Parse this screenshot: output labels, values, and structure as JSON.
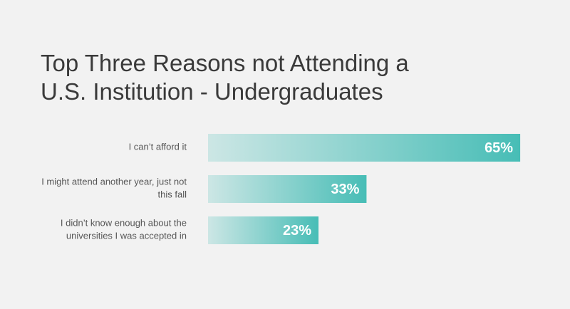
{
  "chart_data": {
    "type": "bar",
    "orientation": "horizontal",
    "title": "Top Three Reasons not Attending a U.S. Institution - Undergraduates",
    "categories": [
      "I can’t afford it",
      "I might attend another year, just not this fall",
      "I didn’t know enough about the universities I was accepted in"
    ],
    "values": [
      65,
      33,
      23
    ],
    "value_labels": [
      "65%",
      "33%",
      "23%"
    ],
    "color": "#47bdb6"
  }
}
